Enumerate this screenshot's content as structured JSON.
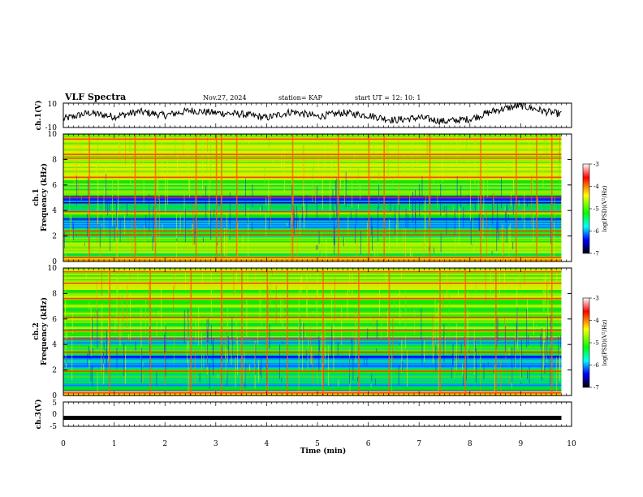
{
  "header": {
    "title": "VLF Spectra",
    "date": "Nov.27, 2024",
    "station": "station= KAP",
    "start_ut": "start  UT =   12: 10: 1"
  },
  "colorbar": {
    "label": "log(PSD)(V²/Hz)",
    "ticks": [
      "-3",
      "-4",
      "-5",
      "-6",
      "-7"
    ],
    "colors": [
      "#ffffff",
      "#ff0000",
      "#ffff00",
      "#00ff00",
      "#00ffff",
      "#0000ff",
      "#000000"
    ]
  },
  "chart_data": [
    {
      "type": "line",
      "panel": "ch1-waveform",
      "ylabel": "ch.1(V)",
      "ylim": [
        -10,
        10
      ],
      "y_ticks": [
        "10",
        "-10"
      ],
      "xlim": [
        0,
        10
      ],
      "x": [
        0,
        0.5,
        1,
        1.5,
        2,
        2.5,
        3,
        3.5,
        4,
        4.5,
        5,
        5.5,
        6,
        6.5,
        7,
        7.5,
        8,
        8.5,
        9,
        9.5,
        9.8
      ],
      "values": [
        -3,
        2,
        -1,
        3,
        0,
        4,
        2,
        1,
        -2,
        3,
        -1,
        2,
        0,
        -4,
        -2,
        -5,
        -3,
        4,
        8,
        3,
        1
      ],
      "color": "#000000"
    },
    {
      "type": "heatmap",
      "panel": "ch1-spectrogram",
      "ylabel_line1": "ch.1",
      "ylabel_line2": "Frequency (kHz)",
      "ylim": [
        0,
        10
      ],
      "y_ticks": [
        "0",
        "2",
        "4",
        "6",
        "8",
        "10"
      ],
      "xlim": [
        0,
        9.8
      ],
      "value_range": [
        -7,
        -3
      ],
      "bands": [
        {
          "from": 0,
          "to": 0.4,
          "value": -3.8
        },
        {
          "from": 0.4,
          "to": 1.5,
          "value": -4.9
        },
        {
          "from": 1.5,
          "to": 2.6,
          "value": -5.1
        },
        {
          "from": 2.6,
          "to": 3.5,
          "value": -5.9
        },
        {
          "from": 3.5,
          "to": 3.9,
          "value": -5.0
        },
        {
          "from": 3.9,
          "to": 4.6,
          "value": -5.6
        },
        {
          "from": 4.6,
          "to": 5.2,
          "value": -6.2
        },
        {
          "from": 5.2,
          "to": 6.4,
          "value": -5.0
        },
        {
          "from": 6.4,
          "to": 7.2,
          "value": -4.4
        },
        {
          "from": 7.2,
          "to": 10,
          "value": -4.6
        }
      ],
      "lines_khz": [
        0.3,
        2.1,
        2.4,
        3.9,
        5.0,
        6.6,
        8.1,
        8.4,
        9.6
      ],
      "bursts_min": [
        0.5,
        1.4,
        1.8,
        2.6,
        3.0,
        3.1,
        3.4,
        4.5,
        5.4,
        6.0,
        6.3,
        7.2,
        8.2,
        8.9,
        9.3,
        9.6
      ]
    },
    {
      "type": "heatmap",
      "panel": "ch2-spectrogram",
      "ylabel_line1": "ch.2",
      "ylabel_line2": "Frequency (kHz)",
      "ylim": [
        0,
        10
      ],
      "y_ticks": [
        "0",
        "2",
        "4",
        "6",
        "8",
        "10"
      ],
      "xlim": [
        0,
        9.8
      ],
      "value_range": [
        -7,
        -3
      ],
      "bands": [
        {
          "from": 0,
          "to": 0.4,
          "value": -4.2
        },
        {
          "from": 0.4,
          "to": 1.3,
          "value": -5.6
        },
        {
          "from": 1.3,
          "to": 2.2,
          "value": -5.3
        },
        {
          "from": 2.2,
          "to": 3.3,
          "value": -6.0
        },
        {
          "from": 3.3,
          "to": 4.1,
          "value": -5.2
        },
        {
          "from": 4.1,
          "to": 4.6,
          "value": -5.7
        },
        {
          "from": 4.6,
          "to": 7.5,
          "value": -4.9
        },
        {
          "from": 7.5,
          "to": 10,
          "value": -4.7
        }
      ],
      "lines_khz": [
        0.2,
        1.9,
        3.4,
        4.4,
        5.1,
        6.1,
        7.6,
        8.8,
        9.7
      ],
      "bursts_min": [
        0.9,
        1.7,
        2.5,
        3.1,
        3.5,
        4.0,
        4.4,
        5.1,
        5.8,
        6.4,
        7.4,
        7.9,
        8.5,
        9.6
      ]
    },
    {
      "type": "line",
      "panel": "ch3-waveform",
      "ylabel": "ch.3(V)",
      "ylim": [
        -5,
        5
      ],
      "y_ticks": [
        "5",
        "0",
        "-5"
      ],
      "xlim": [
        0,
        10
      ],
      "x": [
        0,
        9.8
      ],
      "values": [
        -1.5,
        -1.5
      ],
      "color": "#000000"
    },
    {
      "type": "axis",
      "panel": "time-axis",
      "xlabel": "Time (min)",
      "xlim": [
        0,
        10
      ],
      "x_ticks": [
        "0",
        "1",
        "2",
        "3",
        "4",
        "5",
        "6",
        "7",
        "8",
        "9",
        "10"
      ]
    }
  ]
}
